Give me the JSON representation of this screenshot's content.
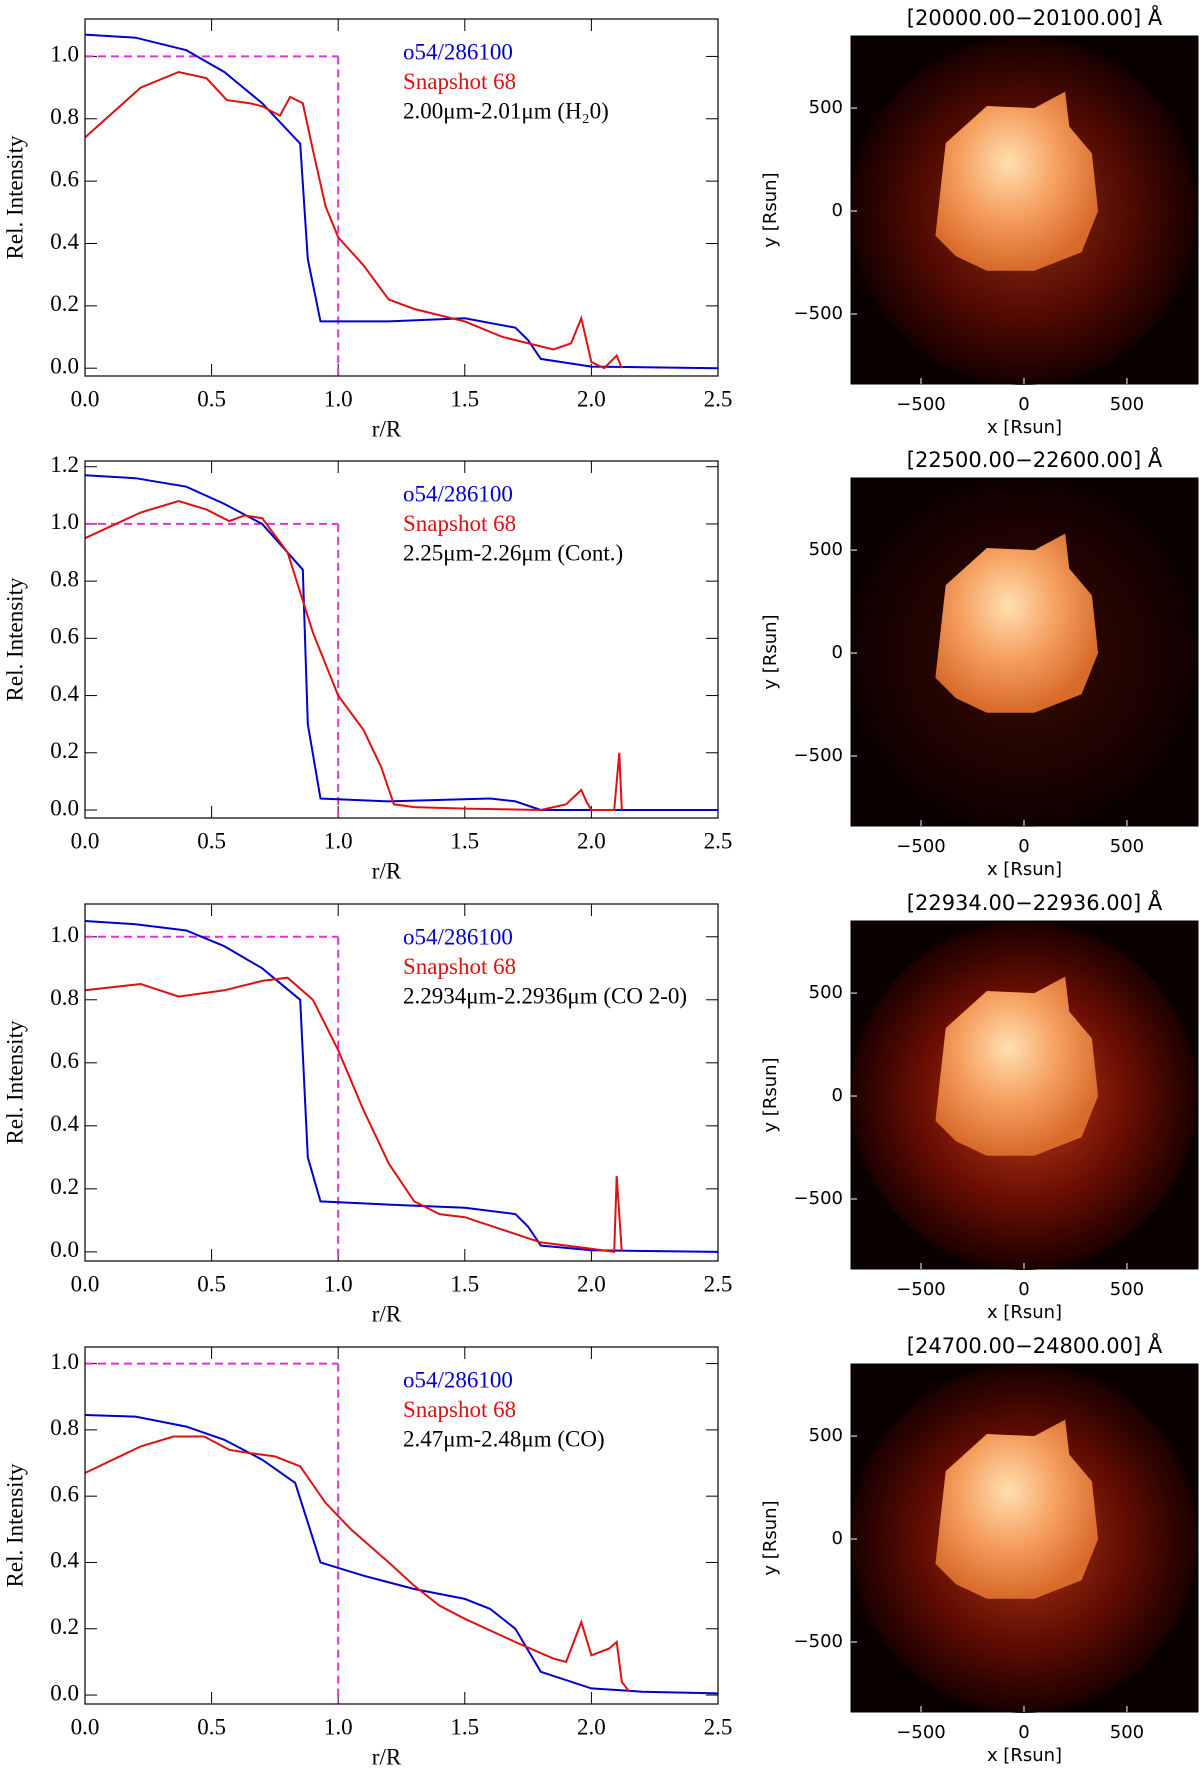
{
  "chart_data": [
    {
      "type": "line",
      "ylabel": "Rel. Intensity",
      "xlabel": "r/R",
      "annotation": "2.00μm-2.01μm (H₂0)",
      "xlim": [
        0,
        2.5
      ],
      "xticks": [
        {
          "value": 0,
          "label": "0.0"
        },
        0.5,
        {
          "value": 1,
          "label": "1.0"
        },
        1.5,
        {
          "value": 2,
          "label": "2.0"
        },
        2.5
      ],
      "ylim": [
        -0.025,
        1.12
      ],
      "yticks": [
        {
          "value": 0,
          "label": "0.0"
        },
        0.2,
        0.4,
        0.6,
        0.8,
        {
          "value": 1,
          "label": "1.0"
        }
      ],
      "reference": {
        "r": 1,
        "level": 1,
        "color": "#e030e0"
      },
      "series": [
        {
          "name": "o54/286100",
          "color": "#0000cc",
          "x": [
            0,
            0.2,
            0.4,
            0.55,
            0.7,
            0.85,
            0.88,
            0.93,
            1.2,
            1.5,
            1.7,
            1.75,
            1.8,
            2.0,
            2.5
          ],
          "values": [
            1.07,
            1.06,
            1.02,
            0.95,
            0.85,
            0.72,
            0.35,
            0.15,
            0.15,
            0.16,
            0.13,
            0.09,
            0.03,
            0.005,
            0
          ]
        },
        {
          "name": "Snapshot 68",
          "color": "#dd1111",
          "x": [
            0,
            0.22,
            0.37,
            0.48,
            0.56,
            0.65,
            0.7,
            0.77,
            0.81,
            0.86,
            0.9,
            0.95,
            1.0,
            1.1,
            1.2,
            1.3,
            1.5,
            1.65,
            1.85,
            1.92,
            1.96,
            2.0,
            2.05,
            2.1,
            2.12
          ],
          "values": [
            0.74,
            0.9,
            0.95,
            0.93,
            0.86,
            0.85,
            0.84,
            0.81,
            0.87,
            0.85,
            0.7,
            0.52,
            0.42,
            0.33,
            0.22,
            0.19,
            0.15,
            0.1,
            0.06,
            0.08,
            0.16,
            0.02,
            0,
            0.04,
            0
          ]
        }
      ]
    },
    {
      "type": "image",
      "title": "[20000.00−20100.00] Å",
      "xlabel": "x [Rsun]",
      "ylabel": "y [Rsun]",
      "xlim": [
        -840,
        845
      ],
      "ylim": [
        -840,
        850
      ],
      "xticks": [
        {
          "value": -500,
          "label": "−500"
        },
        0,
        500
      ],
      "yticks": [
        {
          "value": -500,
          "label": "−500"
        },
        0,
        500
      ],
      "glow": 0.75
    },
    {
      "type": "line",
      "ylabel": "Rel. Intensity",
      "xlabel": "r/R",
      "annotation": "2.25μm-2.26μm (Cont.)",
      "xlim": [
        0,
        2.5
      ],
      "xticks": [
        {
          "value": 0,
          "label": "0.0"
        },
        0.5,
        {
          "value": 1,
          "label": "1.0"
        },
        1.5,
        {
          "value": 2,
          "label": "2.0"
        },
        2.5
      ],
      "ylim": [
        -0.028,
        1.22
      ],
      "yticks": [
        {
          "value": 0,
          "label": "0.0"
        },
        0.2,
        0.4,
        0.6,
        0.8,
        {
          "value": 1,
          "label": "1.0"
        },
        1.2
      ],
      "reference": {
        "r": 1,
        "level": 1,
        "color": "#e030e0"
      },
      "series": [
        {
          "name": "o54/286100",
          "color": "#0000cc",
          "x": [
            0,
            0.2,
            0.4,
            0.55,
            0.7,
            0.86,
            0.88,
            0.93,
            1.2,
            1.6,
            1.7,
            1.8,
            2.5
          ],
          "values": [
            1.17,
            1.16,
            1.13,
            1.07,
            1.0,
            0.84,
            0.3,
            0.04,
            0.03,
            0.04,
            0.03,
            0,
            0
          ]
        },
        {
          "name": "Snapshot 68",
          "color": "#dd1111",
          "x": [
            0,
            0.22,
            0.37,
            0.48,
            0.57,
            0.63,
            0.7,
            0.8,
            0.9,
            1.0,
            1.1,
            1.17,
            1.22,
            1.3,
            1.5,
            1.8,
            1.9,
            1.96,
            1.98,
            2.0,
            2.09,
            2.11,
            2.12
          ],
          "values": [
            0.95,
            1.04,
            1.08,
            1.05,
            1.01,
            1.03,
            1.02,
            0.9,
            0.62,
            0.4,
            0.28,
            0.15,
            0.02,
            0.01,
            0.005,
            0,
            0.02,
            0.07,
            0.03,
            0,
            0,
            0.2,
            0
          ]
        }
      ]
    },
    {
      "type": "image",
      "title": "[22500.00−22600.00] Å",
      "xlabel": "x [Rsun]",
      "ylabel": "y [Rsun]",
      "xlim": [
        -840,
        845
      ],
      "ylim": [
        -840,
        850
      ],
      "xticks": [
        {
          "value": -500,
          "label": "−500"
        },
        0,
        500
      ],
      "yticks": [
        {
          "value": -500,
          "label": "−500"
        },
        0,
        500
      ],
      "glow": 0.25
    },
    {
      "type": "line",
      "ylabel": "Rel. Intensity",
      "xlabel": "r/R",
      "annotation": "2.2934μm-2.2936μm (CO 2-0)",
      "xlim": [
        0,
        2.5
      ],
      "xticks": [
        {
          "value": 0,
          "label": "0.0"
        },
        0.5,
        {
          "value": 1,
          "label": "1.0"
        },
        1.5,
        {
          "value": 2,
          "label": "2.0"
        },
        2.5
      ],
      "ylim": [
        -0.029,
        1.104
      ],
      "yticks": [
        {
          "value": 0,
          "label": "0.0"
        },
        0.2,
        0.4,
        0.6,
        0.8,
        {
          "value": 1,
          "label": "1.0"
        }
      ],
      "reference": {
        "r": 1,
        "level": 1,
        "color": "#e030e0"
      },
      "series": [
        {
          "name": "o54/286100",
          "color": "#0000cc",
          "x": [
            0,
            0.2,
            0.4,
            0.55,
            0.7,
            0.85,
            0.88,
            0.93,
            1.2,
            1.5,
            1.7,
            1.75,
            1.8,
            2.0,
            2.5
          ],
          "values": [
            1.05,
            1.04,
            1.02,
            0.97,
            0.9,
            0.8,
            0.3,
            0.16,
            0.15,
            0.14,
            0.12,
            0.08,
            0.02,
            0.005,
            0
          ]
        },
        {
          "name": "Snapshot 68",
          "color": "#dd1111",
          "x": [
            0,
            0.22,
            0.37,
            0.55,
            0.7,
            0.8,
            0.9,
            1.0,
            1.1,
            1.2,
            1.3,
            1.4,
            1.5,
            1.65,
            1.8,
            2.0,
            2.09,
            2.1,
            2.12
          ],
          "values": [
            0.83,
            0.85,
            0.81,
            0.83,
            0.86,
            0.87,
            0.8,
            0.64,
            0.45,
            0.28,
            0.16,
            0.12,
            0.11,
            0.07,
            0.03,
            0.01,
            0,
            0.24,
            0
          ]
        }
      ]
    },
    {
      "type": "image",
      "title": "[22934.00−22936.00] Å",
      "xlabel": "x [Rsun]",
      "ylabel": "y [Rsun]",
      "xlim": [
        -840,
        845
      ],
      "ylim": [
        -840,
        850
      ],
      "xticks": [
        {
          "value": -500,
          "label": "−500"
        },
        0,
        500
      ],
      "yticks": [
        {
          "value": -500,
          "label": "−500"
        },
        0,
        500
      ],
      "glow": 1
    },
    {
      "type": "line",
      "ylabel": "Rel. Intensity",
      "xlabel": "r/R",
      "annotation": "2.47μm-2.48μm (CO)",
      "xlim": [
        0,
        2.5
      ],
      "xticks": [
        {
          "value": 0,
          "label": "0.0"
        },
        0.5,
        {
          "value": 1,
          "label": "1.0"
        },
        1.5,
        {
          "value": 2,
          "label": "2.0"
        },
        2.5
      ],
      "ylim": [
        -0.027,
        1.05
      ],
      "yticks": [
        {
          "value": 0,
          "label": "0.0"
        },
        0.2,
        0.4,
        0.6,
        0.8,
        {
          "value": 1,
          "label": "1.0"
        }
      ],
      "reference": {
        "r": 1,
        "level": 1,
        "color": "#e030e0"
      },
      "series": [
        {
          "name": "o54/286100",
          "color": "#0000cc",
          "x": [
            0,
            0.2,
            0.4,
            0.55,
            0.7,
            0.83,
            0.93,
            1.1,
            1.3,
            1.5,
            1.6,
            1.7,
            1.8,
            2.0,
            2.2,
            2.5
          ],
          "values": [
            0.845,
            0.84,
            0.81,
            0.77,
            0.71,
            0.64,
            0.4,
            0.36,
            0.32,
            0.29,
            0.26,
            0.2,
            0.07,
            0.02,
            0.01,
            0.005
          ]
        },
        {
          "name": "Snapshot 68",
          "color": "#dd1111",
          "x": [
            0,
            0.22,
            0.35,
            0.47,
            0.57,
            0.65,
            0.75,
            0.85,
            0.95,
            1.05,
            1.2,
            1.3,
            1.4,
            1.5,
            1.7,
            1.85,
            1.9,
            1.96,
            2.0,
            2.07,
            2.1,
            2.12,
            2.15
          ],
          "values": [
            0.67,
            0.75,
            0.78,
            0.78,
            0.74,
            0.73,
            0.72,
            0.69,
            0.58,
            0.5,
            0.4,
            0.33,
            0.27,
            0.23,
            0.16,
            0.11,
            0.1,
            0.22,
            0.12,
            0.14,
            0.16,
            0.04,
            0.01
          ]
        }
      ]
    },
    {
      "type": "image",
      "title": "[24700.00−24800.00] Å",
      "xlabel": "x [Rsun]",
      "ylabel": "y [Rsun]",
      "xlim": [
        -840,
        845
      ],
      "ylim": [
        -840,
        850
      ],
      "xticks": [
        {
          "value": -500,
          "label": "−500"
        },
        0,
        500
      ],
      "yticks": [
        {
          "value": -500,
          "label": "−500"
        },
        0,
        500
      ],
      "glow": 0.9
    }
  ]
}
